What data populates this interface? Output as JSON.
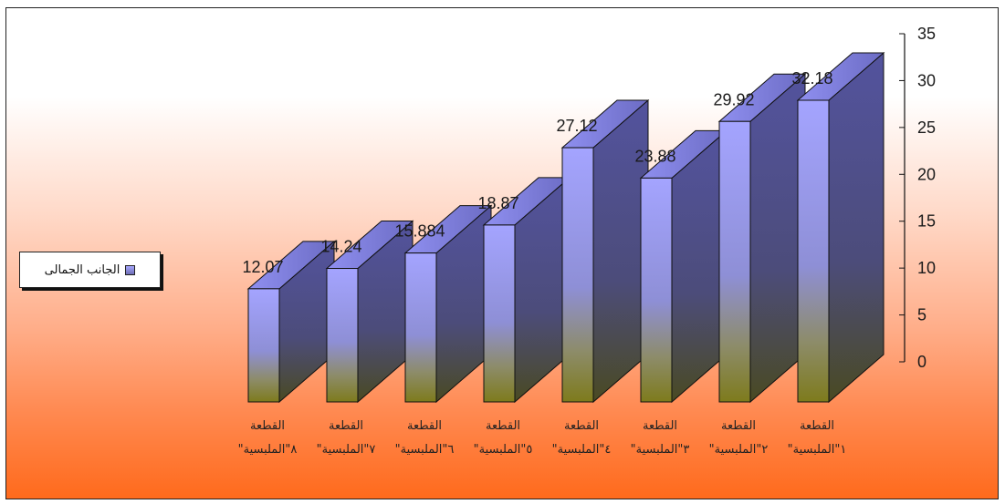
{
  "chart_data": {
    "type": "bar",
    "title": "",
    "xlabel": "",
    "ylabel": "",
    "ylim": [
      0,
      35
    ],
    "yticks": [
      0,
      5,
      10,
      15,
      20,
      25,
      30,
      35
    ],
    "categories": [
      "القطعة الملبسية \"٨\"",
      "القطعة الملبسية \"٧\"",
      "القطعة الملبسية \"٦\"",
      "القطعة الملبسية \"٥\"",
      "القطعة الملبسية \"٤\"",
      "القطعة الملبسية \"٣\"",
      "القطعة الملبسية \"٢\"",
      "القطعة الملبسية \"١\""
    ],
    "category_lines": [
      [
        "القطعة",
        "\"٨\"الملبسية"
      ],
      [
        "القطعة",
        "\"٧\"الملبسية"
      ],
      [
        "القطعة",
        "\"٦\"الملبسية"
      ],
      [
        "القطعة",
        "\"٥\"الملبسية"
      ],
      [
        "القطعة",
        "\"٤\"الملبسية"
      ],
      [
        "القطعة",
        "\"٣\"الملبسية"
      ],
      [
        "القطعة",
        "\"٢\"الملبسية"
      ],
      [
        "القطعة",
        "\"١\"الملبسية"
      ]
    ],
    "series": [
      {
        "name": "الجانب الجمالى",
        "values": [
          12.07,
          14.24,
          15.884,
          18.87,
          27.12,
          23.88,
          29.92,
          32.18
        ],
        "data_labels": [
          "12.07",
          "14.24",
          "15.884",
          "18.87",
          "27.12",
          "23.88",
          "29.92",
          "32.18"
        ]
      }
    ],
    "legend_position": "left",
    "grid": false,
    "bar_style": "3d",
    "colors": {
      "bar_top": "#a0a0ff",
      "bar_bottom": "#8c8a2a",
      "side": "#4f4f95",
      "background_bottom": "#ff6a1c"
    }
  }
}
